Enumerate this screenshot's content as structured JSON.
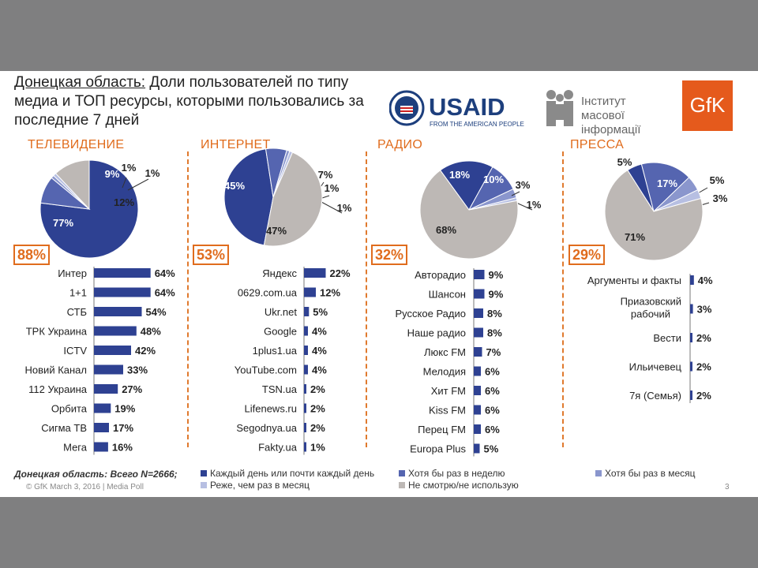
{
  "title": {
    "highlight": "Донецкая область:",
    "rest": " Доли пользователей по типу медиа и ТОП ресурсы, которыми пользовались за последние 7 дней"
  },
  "logos": {
    "usaid_text": "USAID",
    "usaid_sub": "FROM THE AMERICAN PEOPLE",
    "imi_line1": "Інститут масової",
    "imi_line2": "інформації",
    "gfk": "GfK"
  },
  "colors": {
    "daily": "#2e4192",
    "weekly": "#5565b0",
    "monthly": "#8a96cd",
    "less": "#b7bfe2",
    "never": "#bdb8b5",
    "accent": "#e06c1d"
  },
  "chart_data": [
    {
      "type": "pie",
      "title": "ТЕЛЕВИДЕНИЕ",
      "reach": "88%",
      "slices": [
        {
          "label": "77%",
          "value": 77,
          "category": "daily"
        },
        {
          "label": "9%",
          "value": 9,
          "category": "weekly"
        },
        {
          "label": "1%",
          "value": 1,
          "category": "monthly"
        },
        {
          "label": "1%",
          "value": 1,
          "category": "less"
        },
        {
          "label": "12%",
          "value": 12,
          "category": "never"
        }
      ]
    },
    {
      "type": "pie",
      "title": "ИНТЕРНЕТ",
      "reach": "53%",
      "slices": [
        {
          "label": "45%",
          "value": 45,
          "category": "daily"
        },
        {
          "label": "7%",
          "value": 7,
          "category": "weekly"
        },
        {
          "label": "1%",
          "value": 1,
          "category": "monthly"
        },
        {
          "label": "1%",
          "value": 1,
          "category": "less"
        },
        {
          "label": "47%",
          "value": 47,
          "category": "never"
        }
      ]
    },
    {
      "type": "pie",
      "title": "РАДИО",
      "reach": "32%",
      "slices": [
        {
          "label": "18%",
          "value": 18,
          "category": "daily"
        },
        {
          "label": "10%",
          "value": 10,
          "category": "weekly"
        },
        {
          "label": "3%",
          "value": 3,
          "category": "monthly"
        },
        {
          "label": "1%",
          "value": 1,
          "category": "less"
        },
        {
          "label": "68%",
          "value": 68,
          "category": "never"
        }
      ]
    },
    {
      "type": "pie",
      "title": "ПРЕССА",
      "reach": "29%",
      "slices": [
        {
          "label": "5%",
          "value": 5,
          "category": "daily"
        },
        {
          "label": "17%",
          "value": 17,
          "category": "weekly"
        },
        {
          "label": "5%",
          "value": 5,
          "category": "monthly"
        },
        {
          "label": "3%",
          "value": 3,
          "category": "less"
        },
        {
          "label": "71%",
          "value": 71,
          "category": "never"
        }
      ]
    },
    {
      "type": "bar",
      "orientation": "horizontal",
      "categories": [
        "Интер",
        "1+1",
        "СТБ",
        "ТРК Украина",
        "ICTV",
        "Новий Канал",
        "112 Украина",
        "Орбита",
        "Сигма ТВ",
        "Мега"
      ],
      "values": [
        64,
        64,
        54,
        48,
        42,
        33,
        27,
        19,
        17,
        16
      ],
      "value_labels": [
        "64%",
        "64%",
        "54%",
        "48%",
        "42%",
        "33%",
        "27%",
        "19%",
        "17%",
        "16%"
      ]
    },
    {
      "type": "bar",
      "orientation": "horizontal",
      "categories": [
        "Яндекс",
        "0629.com.ua",
        "Ukr.net",
        "Google",
        "1plus1.ua",
        "YouTube.com",
        "TSN.ua",
        "Lifenews.ru",
        "Segodnya.ua",
        "Fakty.ua"
      ],
      "values": [
        22,
        12,
        5,
        4,
        4,
        4,
        2,
        2,
        2,
        1
      ],
      "value_labels": [
        "22%",
        "12%",
        "5%",
        "4%",
        "4%",
        "4%",
        "2%",
        "2%",
        "2%",
        "1%"
      ]
    },
    {
      "type": "bar",
      "orientation": "horizontal",
      "categories": [
        "Авторадио",
        "Шансон",
        "Русское Радио",
        "Наше радио",
        "Люкс FM",
        "Мелодия",
        "Хит FM",
        "Kiss FM",
        "Перец FM",
        "Europa Plus"
      ],
      "values": [
        9,
        9,
        8,
        8,
        7,
        6,
        6,
        6,
        6,
        5
      ],
      "value_labels": [
        "9%",
        "9%",
        "8%",
        "8%",
        "7%",
        "6%",
        "6%",
        "6%",
        "6%",
        "5%"
      ]
    },
    {
      "type": "bar",
      "orientation": "horizontal",
      "categories": [
        "Аргументы и факты",
        "Приазовский рабочий",
        "Вести",
        "Ильичевец",
        "7я (Семья)"
      ],
      "values": [
        4,
        3,
        2,
        2,
        2
      ],
      "value_labels": [
        "4%",
        "3%",
        "2%",
        "2%",
        "2%"
      ]
    }
  ],
  "legend": [
    {
      "label": "Каждый день или почти каждый день",
      "category": "daily"
    },
    {
      "label": "Хотя бы раз в неделю",
      "category": "weekly"
    },
    {
      "label": "Хотя бы раз в месяц",
      "category": "monthly"
    },
    {
      "label": "Реже, чем раз в месяц",
      "category": "less"
    },
    {
      "label": "Не смотрю/не использую",
      "category": "never"
    }
  ],
  "footnote": "Донецкая область: Всего N=2666;",
  "copyright": "© GfK March 3, 2016 | Media Poll",
  "page_number": "3"
}
